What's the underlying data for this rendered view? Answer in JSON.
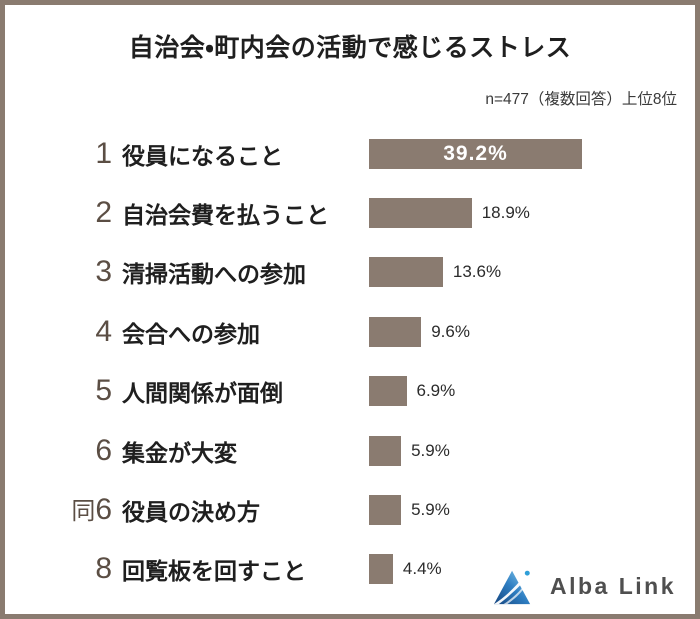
{
  "title": "自治会・町内会の活動で感じるストレス",
  "note": "n=477（複数回答）上位8位",
  "chart_data": {
    "type": "bar",
    "orientation": "horizontal",
    "title": "自治会・町内会の活動で感じるストレス",
    "note": "n=477（複数回答）上位8位",
    "unit": "%",
    "xlim": [
      0,
      40
    ],
    "value_axis_hidden": true,
    "rows": [
      {
        "rank": "1",
        "label": "役員になること",
        "value": 39.2,
        "display": "39.2%",
        "value_inside_bar": true
      },
      {
        "rank": "2",
        "label": "自治会費を払うこと",
        "value": 18.9,
        "display": "18.9%",
        "value_inside_bar": false
      },
      {
        "rank": "3",
        "label": "清掃活動への参加",
        "value": 13.6,
        "display": "13.6%",
        "value_inside_bar": false
      },
      {
        "rank": "4",
        "label": "会合への参加",
        "value": 9.6,
        "display": "9.6%",
        "value_inside_bar": false
      },
      {
        "rank": "5",
        "label": "人間関係が面倒",
        "value": 6.9,
        "display": "6.9%",
        "value_inside_bar": false
      },
      {
        "rank": "6",
        "label": "集金が大変",
        "value": 5.9,
        "display": "5.9%",
        "value_inside_bar": false
      },
      {
        "rank": "同6",
        "label": "役員の決め方",
        "value": 5.9,
        "display": "5.9%",
        "value_inside_bar": false
      },
      {
        "rank": "8",
        "label": "回覧板を回すこと",
        "value": 4.4,
        "display": "4.4%",
        "value_inside_bar": false
      }
    ]
  },
  "logo": {
    "brand": "Alba Link",
    "icon": "mountain-swoosh-icon"
  },
  "colors": {
    "bar": "#8a7b70",
    "border": "#8a7b70",
    "rank": "#5b4e44",
    "text": "#1f1f1f",
    "pct": "#2b2b2b",
    "bar_label_inside": "#ffffff",
    "logo_text": "#4f4f4f",
    "logo_blue_dark": "#15457f",
    "logo_blue_mid": "#2e7ec2",
    "logo_blue_light": "#8ed0f0",
    "logo_dot": "#2f9fd8"
  }
}
